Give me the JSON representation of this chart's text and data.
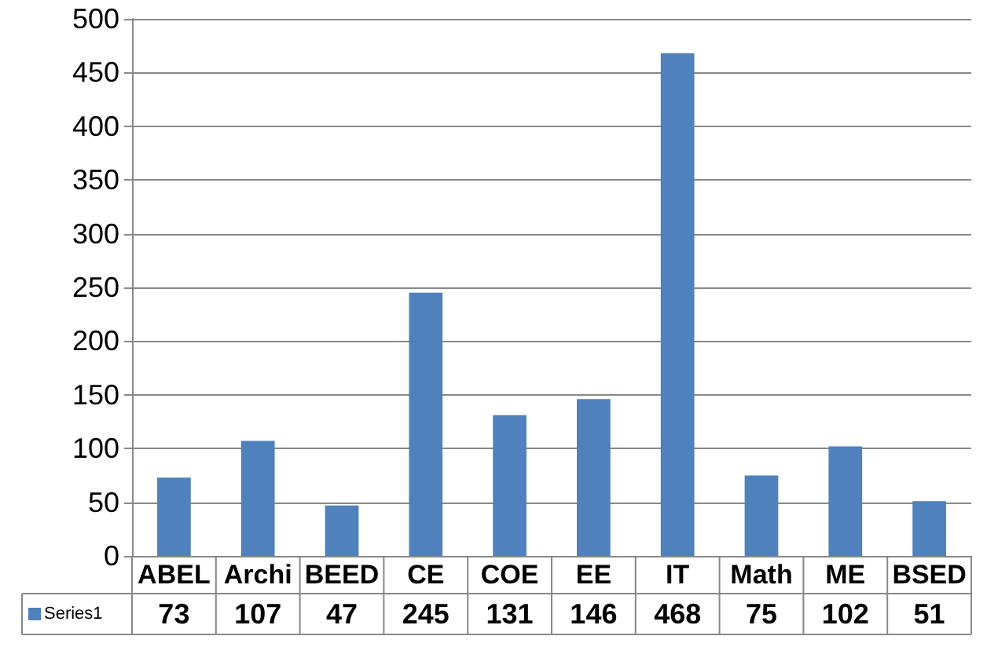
{
  "chart_data": {
    "type": "bar",
    "categories": [
      "ABEL",
      "Archi",
      "BEED",
      "CE",
      "COE",
      "EE",
      "IT",
      "Math",
      "ME",
      "BSED"
    ],
    "series": [
      {
        "name": "Series1",
        "color": "#4f81bd",
        "values": [
          73,
          107,
          47,
          245,
          131,
          146,
          468,
          75,
          102,
          51
        ]
      }
    ],
    "ylim": [
      0,
      500
    ],
    "yticks": [
      0,
      50,
      100,
      150,
      200,
      250,
      300,
      350,
      400,
      450,
      500
    ],
    "grid": "y",
    "legend": "bottom",
    "data_labels": true
  }
}
